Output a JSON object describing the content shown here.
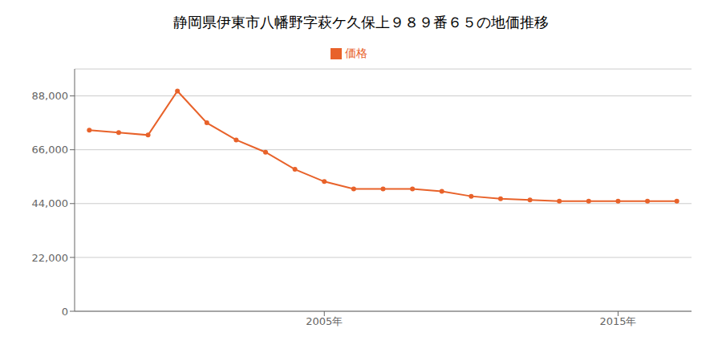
{
  "chart_data": {
    "type": "line",
    "title": "静岡県伊東市八幡野字萩ケ久保上９８９番６５の地価推移",
    "x": [
      1997,
      1998,
      1999,
      2000,
      2001,
      2002,
      2003,
      2004,
      2005,
      2006,
      2007,
      2008,
      2009,
      2010,
      2011,
      2012,
      2013,
      2014,
      2015,
      2016,
      2017
    ],
    "series": [
      {
        "name": "価格",
        "color": "#e8622a",
        "marker": "circle",
        "values": [
          74000,
          73000,
          72000,
          90000,
          77000,
          70000,
          65000,
          58000,
          53000,
          50000,
          50000,
          50000,
          49000,
          47000,
          46000,
          45500,
          45000,
          45000,
          45000,
          45000,
          45000
        ]
      }
    ],
    "xlim": [
      1996.5,
      2017.5
    ],
    "xticks": [
      {
        "value": 2005,
        "label": "2005年"
      },
      {
        "value": 2015,
        "label": "2015年"
      }
    ],
    "ylim": [
      0,
      99000
    ],
    "yticks": [
      0,
      {
        "value": 22000,
        "label": "22,000"
      },
      {
        "value": 44000,
        "label": "44,000"
      },
      {
        "value": 66000,
        "label": "66,000"
      },
      {
        "value": 88000,
        "label": "88,000"
      }
    ],
    "grid": true,
    "legend": "top"
  }
}
